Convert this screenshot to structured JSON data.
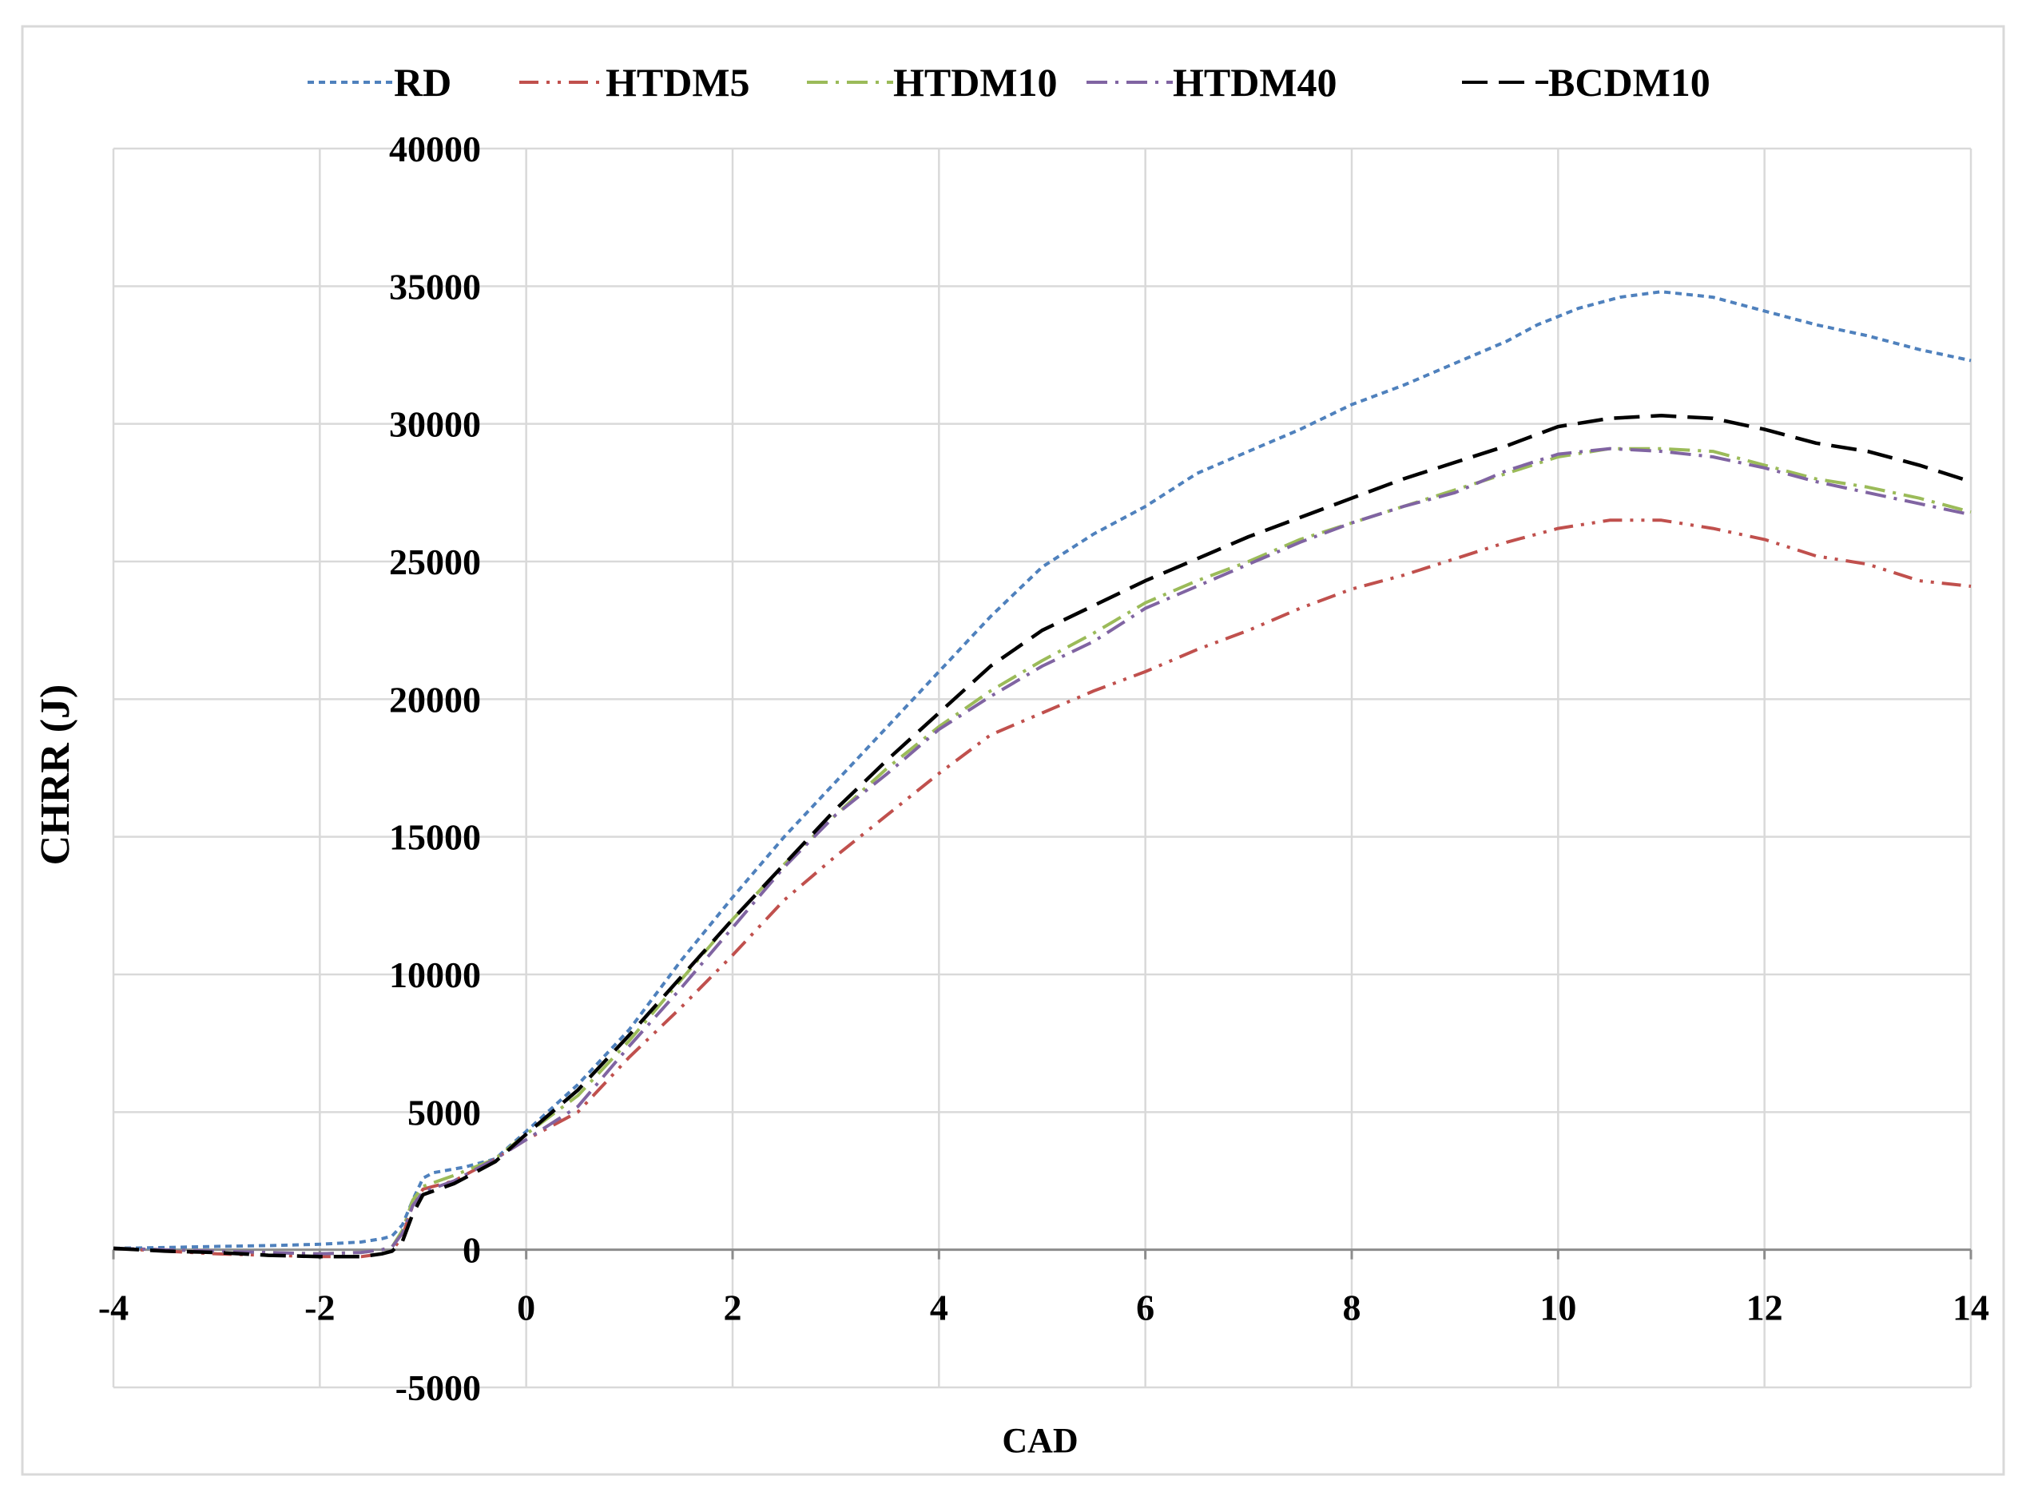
{
  "chart_data": {
    "type": "line",
    "title": "",
    "xlabel": "CAD",
    "ylabel": "CHRR (J)",
    "xlim": [
      -4,
      14
    ],
    "ylim": [
      -5000,
      40000
    ],
    "x_ticks": [
      -4,
      -2,
      0,
      2,
      4,
      6,
      8,
      10,
      12,
      14
    ],
    "y_ticks": [
      -5000,
      0,
      5000,
      10000,
      15000,
      20000,
      25000,
      30000,
      35000,
      40000
    ],
    "grid": true,
    "legend_position": "top",
    "series": [
      {
        "name": "RD",
        "color": "#4f81bd",
        "dash": "dotted",
        "points": [
          [
            -4,
            50
          ],
          [
            -3.5,
            80
          ],
          [
            -3,
            120
          ],
          [
            -2.5,
            150
          ],
          [
            -2,
            200
          ],
          [
            -1.6,
            280
          ],
          [
            -1.4,
            400
          ],
          [
            -1.3,
            500
          ],
          [
            -1.2,
            900
          ],
          [
            -1.1,
            1800
          ],
          [
            -1,
            2600
          ],
          [
            -0.9,
            2800
          ],
          [
            -0.6,
            3000
          ],
          [
            -0.3,
            3300
          ],
          [
            0,
            4300
          ],
          [
            0.5,
            6000
          ],
          [
            1,
            8000
          ],
          [
            1.5,
            10500
          ],
          [
            2,
            12800
          ],
          [
            2.5,
            15000
          ],
          [
            3,
            17000
          ],
          [
            3.5,
            19000
          ],
          [
            4,
            21000
          ],
          [
            4.5,
            23000
          ],
          [
            5,
            24800
          ],
          [
            5.5,
            26000
          ],
          [
            6,
            27000
          ],
          [
            6.5,
            28200
          ],
          [
            7,
            29000
          ],
          [
            7.5,
            29800
          ],
          [
            8,
            30700
          ],
          [
            8.5,
            31400
          ],
          [
            9,
            32200
          ],
          [
            9.5,
            33000
          ],
          [
            9.8,
            33600
          ],
          [
            10.2,
            34200
          ],
          [
            10.6,
            34600
          ],
          [
            11,
            34800
          ],
          [
            11.5,
            34600
          ],
          [
            12,
            34100
          ],
          [
            12.5,
            33600
          ],
          [
            13,
            33200
          ],
          [
            13.5,
            32700
          ],
          [
            14,
            32300
          ]
        ]
      },
      {
        "name": "HTDM5",
        "color": "#c0504d",
        "dash": "dash-dot-dot",
        "points": [
          [
            -4,
            50
          ],
          [
            -3.5,
            -50
          ],
          [
            -3,
            -150
          ],
          [
            -2.5,
            -200
          ],
          [
            -2,
            -250
          ],
          [
            -1.6,
            -250
          ],
          [
            -1.4,
            -150
          ],
          [
            -1.3,
            -50
          ],
          [
            -1.2,
            500
          ],
          [
            -1.1,
            1600
          ],
          [
            -1,
            2200
          ],
          [
            -0.7,
            2500
          ],
          [
            -0.3,
            3300
          ],
          [
            0,
            4000
          ],
          [
            0.5,
            5000
          ],
          [
            1,
            7000
          ],
          [
            1.5,
            8800
          ],
          [
            2,
            10700
          ],
          [
            2.5,
            12700
          ],
          [
            3,
            14300
          ],
          [
            3.5,
            15800
          ],
          [
            4,
            17300
          ],
          [
            4.5,
            18700
          ],
          [
            5,
            19500
          ],
          [
            5.5,
            20300
          ],
          [
            6,
            21000
          ],
          [
            6.5,
            21800
          ],
          [
            7,
            22500
          ],
          [
            7.5,
            23300
          ],
          [
            8,
            24000
          ],
          [
            8.5,
            24500
          ],
          [
            9,
            25100
          ],
          [
            9.5,
            25700
          ],
          [
            10,
            26200
          ],
          [
            10.5,
            26500
          ],
          [
            11,
            26500
          ],
          [
            11.5,
            26200
          ],
          [
            12,
            25800
          ],
          [
            12.5,
            25200
          ],
          [
            13,
            24900
          ],
          [
            13.5,
            24300
          ],
          [
            14,
            24100
          ]
        ]
      },
      {
        "name": "HTDM10",
        "color": "#9bbb59",
        "dash": "dash-dot",
        "points": [
          [
            -4,
            50
          ],
          [
            -3.5,
            0
          ],
          [
            -3,
            -50
          ],
          [
            -2.5,
            -100
          ],
          [
            -2,
            -150
          ],
          [
            -1.6,
            -100
          ],
          [
            -1.4,
            0
          ],
          [
            -1.3,
            100
          ],
          [
            -1.2,
            700
          ],
          [
            -1.1,
            1800
          ],
          [
            -1,
            2300
          ],
          [
            -0.7,
            2700
          ],
          [
            -0.3,
            3300
          ],
          [
            0,
            4200
          ],
          [
            0.5,
            5600
          ],
          [
            1,
            7600
          ],
          [
            1.5,
            9800
          ],
          [
            2,
            12000
          ],
          [
            2.5,
            14000
          ],
          [
            3,
            15800
          ],
          [
            3.5,
            17500
          ],
          [
            4,
            19000
          ],
          [
            4.5,
            20300
          ],
          [
            5,
            21400
          ],
          [
            5.5,
            22400
          ],
          [
            6,
            23500
          ],
          [
            6.5,
            24300
          ],
          [
            7,
            25000
          ],
          [
            7.5,
            25800
          ],
          [
            8,
            26400
          ],
          [
            8.5,
            27000
          ],
          [
            9,
            27600
          ],
          [
            9.5,
            28200
          ],
          [
            10,
            28800
          ],
          [
            10.5,
            29100
          ],
          [
            11,
            29100
          ],
          [
            11.5,
            29000
          ],
          [
            12,
            28500
          ],
          [
            12.5,
            28000
          ],
          [
            13,
            27700
          ],
          [
            13.5,
            27300
          ],
          [
            14,
            26800
          ]
        ]
      },
      {
        "name": "HTDM40",
        "color": "#8064a2",
        "dash": "dash-dot",
        "points": [
          [
            -4,
            50
          ],
          [
            -3.5,
            0
          ],
          [
            -3,
            -50
          ],
          [
            -2.5,
            -100
          ],
          [
            -2,
            -150
          ],
          [
            -1.6,
            -100
          ],
          [
            -1.4,
            0
          ],
          [
            -1.3,
            100
          ],
          [
            -1.2,
            600
          ],
          [
            -1.1,
            1600
          ],
          [
            -1,
            2100
          ],
          [
            -0.7,
            2500
          ],
          [
            -0.3,
            3300
          ],
          [
            0,
            4000
          ],
          [
            0.5,
            5200
          ],
          [
            1,
            7400
          ],
          [
            1.5,
            9500
          ],
          [
            2,
            11700
          ],
          [
            2.5,
            13900
          ],
          [
            3,
            15800
          ],
          [
            3.5,
            17300
          ],
          [
            4,
            18900
          ],
          [
            4.5,
            20100
          ],
          [
            5,
            21200
          ],
          [
            5.5,
            22100
          ],
          [
            6,
            23300
          ],
          [
            6.5,
            24100
          ],
          [
            7,
            24900
          ],
          [
            7.5,
            25700
          ],
          [
            8,
            26400
          ],
          [
            8.5,
            27000
          ],
          [
            9,
            27500
          ],
          [
            9.5,
            28300
          ],
          [
            10,
            28900
          ],
          [
            10.5,
            29100
          ],
          [
            11,
            29000
          ],
          [
            11.5,
            28800
          ],
          [
            12,
            28400
          ],
          [
            12.5,
            27900
          ],
          [
            13,
            27500
          ],
          [
            13.5,
            27100
          ],
          [
            14,
            26700
          ]
        ]
      },
      {
        "name": "BCDM10",
        "color": "#000000",
        "dash": "dashed",
        "points": [
          [
            -4,
            50
          ],
          [
            -3.5,
            -50
          ],
          [
            -3,
            -100
          ],
          [
            -2.5,
            -200
          ],
          [
            -2,
            -250
          ],
          [
            -1.6,
            -250
          ],
          [
            -1.4,
            -150
          ],
          [
            -1.3,
            -50
          ],
          [
            -1.2,
            300
          ],
          [
            -1.1,
            1300
          ],
          [
            -1,
            2000
          ],
          [
            -0.7,
            2400
          ],
          [
            -0.3,
            3200
          ],
          [
            0,
            4200
          ],
          [
            0.5,
            5800
          ],
          [
            1,
            7800
          ],
          [
            1.5,
            9900
          ],
          [
            2,
            12000
          ],
          [
            2.5,
            14000
          ],
          [
            3,
            16000
          ],
          [
            3.5,
            17800
          ],
          [
            4,
            19500
          ],
          [
            4.5,
            21200
          ],
          [
            5,
            22500
          ],
          [
            5.5,
            23400
          ],
          [
            6,
            24300
          ],
          [
            6.5,
            25100
          ],
          [
            7,
            25900
          ],
          [
            7.5,
            26600
          ],
          [
            8,
            27300
          ],
          [
            8.5,
            28000
          ],
          [
            9,
            28600
          ],
          [
            9.5,
            29200
          ],
          [
            10,
            29900
          ],
          [
            10.5,
            30200
          ],
          [
            11,
            30300
          ],
          [
            11.5,
            30200
          ],
          [
            12,
            29800
          ],
          [
            12.5,
            29300
          ],
          [
            13,
            29000
          ],
          [
            13.5,
            28500
          ],
          [
            14,
            27900
          ]
        ]
      }
    ]
  }
}
